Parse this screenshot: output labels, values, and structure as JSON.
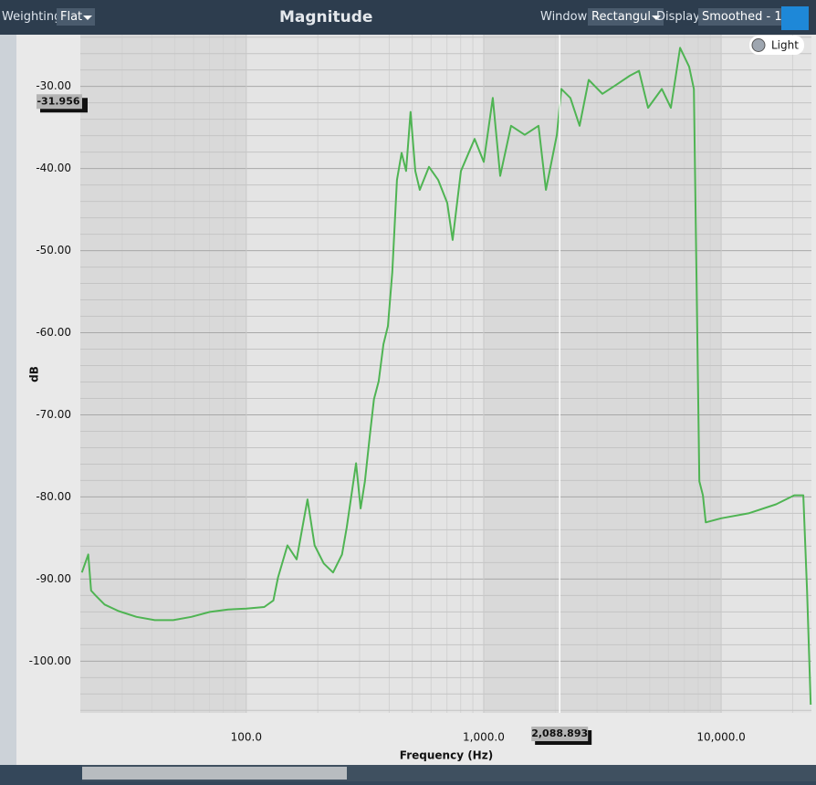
{
  "toolbar": {
    "weighting_label": "Weighting:",
    "weighting": "Flat",
    "title": "Magnitude",
    "window_label": "Window:",
    "window": "Rectangul",
    "display_label": "Display:",
    "display": "Smoothed - 1"
  },
  "toggle": "Light",
  "chart_data": {
    "type": "line",
    "xlabel": "Frequency (Hz)",
    "ylabel": "dB",
    "xscale": "log",
    "grid": true,
    "color": "#4fb453",
    "xlim": [
      20,
      24000
    ],
    "ylim": [
      -106.3,
      -23.7
    ],
    "xticks": [
      {
        "value": 100,
        "label": "100.0"
      },
      {
        "value": 1000,
        "label": "1,000.0"
      },
      {
        "value": 10000,
        "label": "10,000.0"
      }
    ],
    "xminor": [
      30,
      40,
      50,
      60,
      70,
      80,
      90,
      200,
      300,
      400,
      500,
      600,
      700,
      800,
      900,
      2000,
      3000,
      4000,
      5000,
      6000,
      7000,
      8000,
      9000,
      20000
    ],
    "yticks": [
      {
        "value": -100,
        "label": "-100.00"
      },
      {
        "value": -90,
        "label": "-90.00"
      },
      {
        "value": -80,
        "label": "-80.00"
      },
      {
        "value": -70,
        "label": "-70.00"
      },
      {
        "value": -60,
        "label": "-60.00"
      },
      {
        "value": -50,
        "label": "-50.00"
      },
      {
        "value": -40,
        "label": "-40.00"
      },
      {
        "value": -30,
        "label": "-30.00"
      }
    ],
    "yminor": [
      -106,
      -104,
      -102,
      -98,
      -96,
      -94,
      -92,
      -88,
      -86,
      -84,
      -82,
      -78,
      -76,
      -74,
      -72,
      -68,
      -66,
      -64,
      -62,
      -58,
      -56,
      -54,
      -52,
      -48,
      -46,
      -44,
      -42,
      -38,
      -36,
      -34,
      -32,
      -28,
      -26,
      -24
    ],
    "cursor": {
      "x": {
        "value": 2088.893,
        "label": "2,088.893"
      },
      "y": -31.956
    },
    "x": [
      20.3,
      21.6,
      22.2,
      23.2,
      25.3,
      29.0,
      34.5,
      41.2,
      49.2,
      58.7,
      70.2,
      83.8,
      100,
      119,
      130,
      136,
      149,
      163,
      181,
      194,
      212,
      232,
      253,
      265,
      290,
      303,
      316,
      331,
      345,
      361,
      378,
      395,
      412,
      431,
      451,
      471,
      492,
      515,
      538,
      588,
      643,
      702,
      740,
      802,
      916,
      1000,
      1092,
      1173,
      1304,
      1489,
      1702,
      1828,
      2032,
      2123,
      2318,
      2535,
      2768,
      3162,
      3614,
      4121,
      4508,
      4920,
      5623,
      6138,
      6714,
      7328,
      7674,
      7870,
      8091,
      8377,
      8610,
      10000,
      13030,
      17020,
      20320,
      22180,
      23010,
      23830
    ],
    "values": [
      -89.2,
      -87.0,
      -91.4,
      -92.0,
      -93.1,
      -93.9,
      -94.6,
      -95.0,
      -95.0,
      -94.6,
      -94.0,
      -93.7,
      -93.6,
      -93.4,
      -92.6,
      -89.8,
      -85.9,
      -87.6,
      -80.3,
      -85.9,
      -88.1,
      -89.2,
      -87.0,
      -83.7,
      -75.9,
      -81.4,
      -78.1,
      -72.6,
      -68.1,
      -65.9,
      -61.4,
      -59.2,
      -52.6,
      -41.4,
      -38.1,
      -40.3,
      -33.1,
      -40.3,
      -42.6,
      -39.8,
      -41.4,
      -44.2,
      -48.7,
      -40.3,
      -36.4,
      -39.2,
      -31.4,
      -40.9,
      -34.8,
      -35.9,
      -34.8,
      -42.6,
      -35.9,
      -30.3,
      -31.4,
      -34.8,
      -29.2,
      -30.9,
      -29.8,
      -28.7,
      -28.1,
      -32.6,
      -30.3,
      -32.6,
      -25.3,
      -27.6,
      -30.3,
      -52.6,
      -78.1,
      -79.8,
      -83.1,
      -82.6,
      -82.0,
      -80.9,
      -79.8,
      -79.8,
      -91.4,
      -105.3
    ]
  }
}
